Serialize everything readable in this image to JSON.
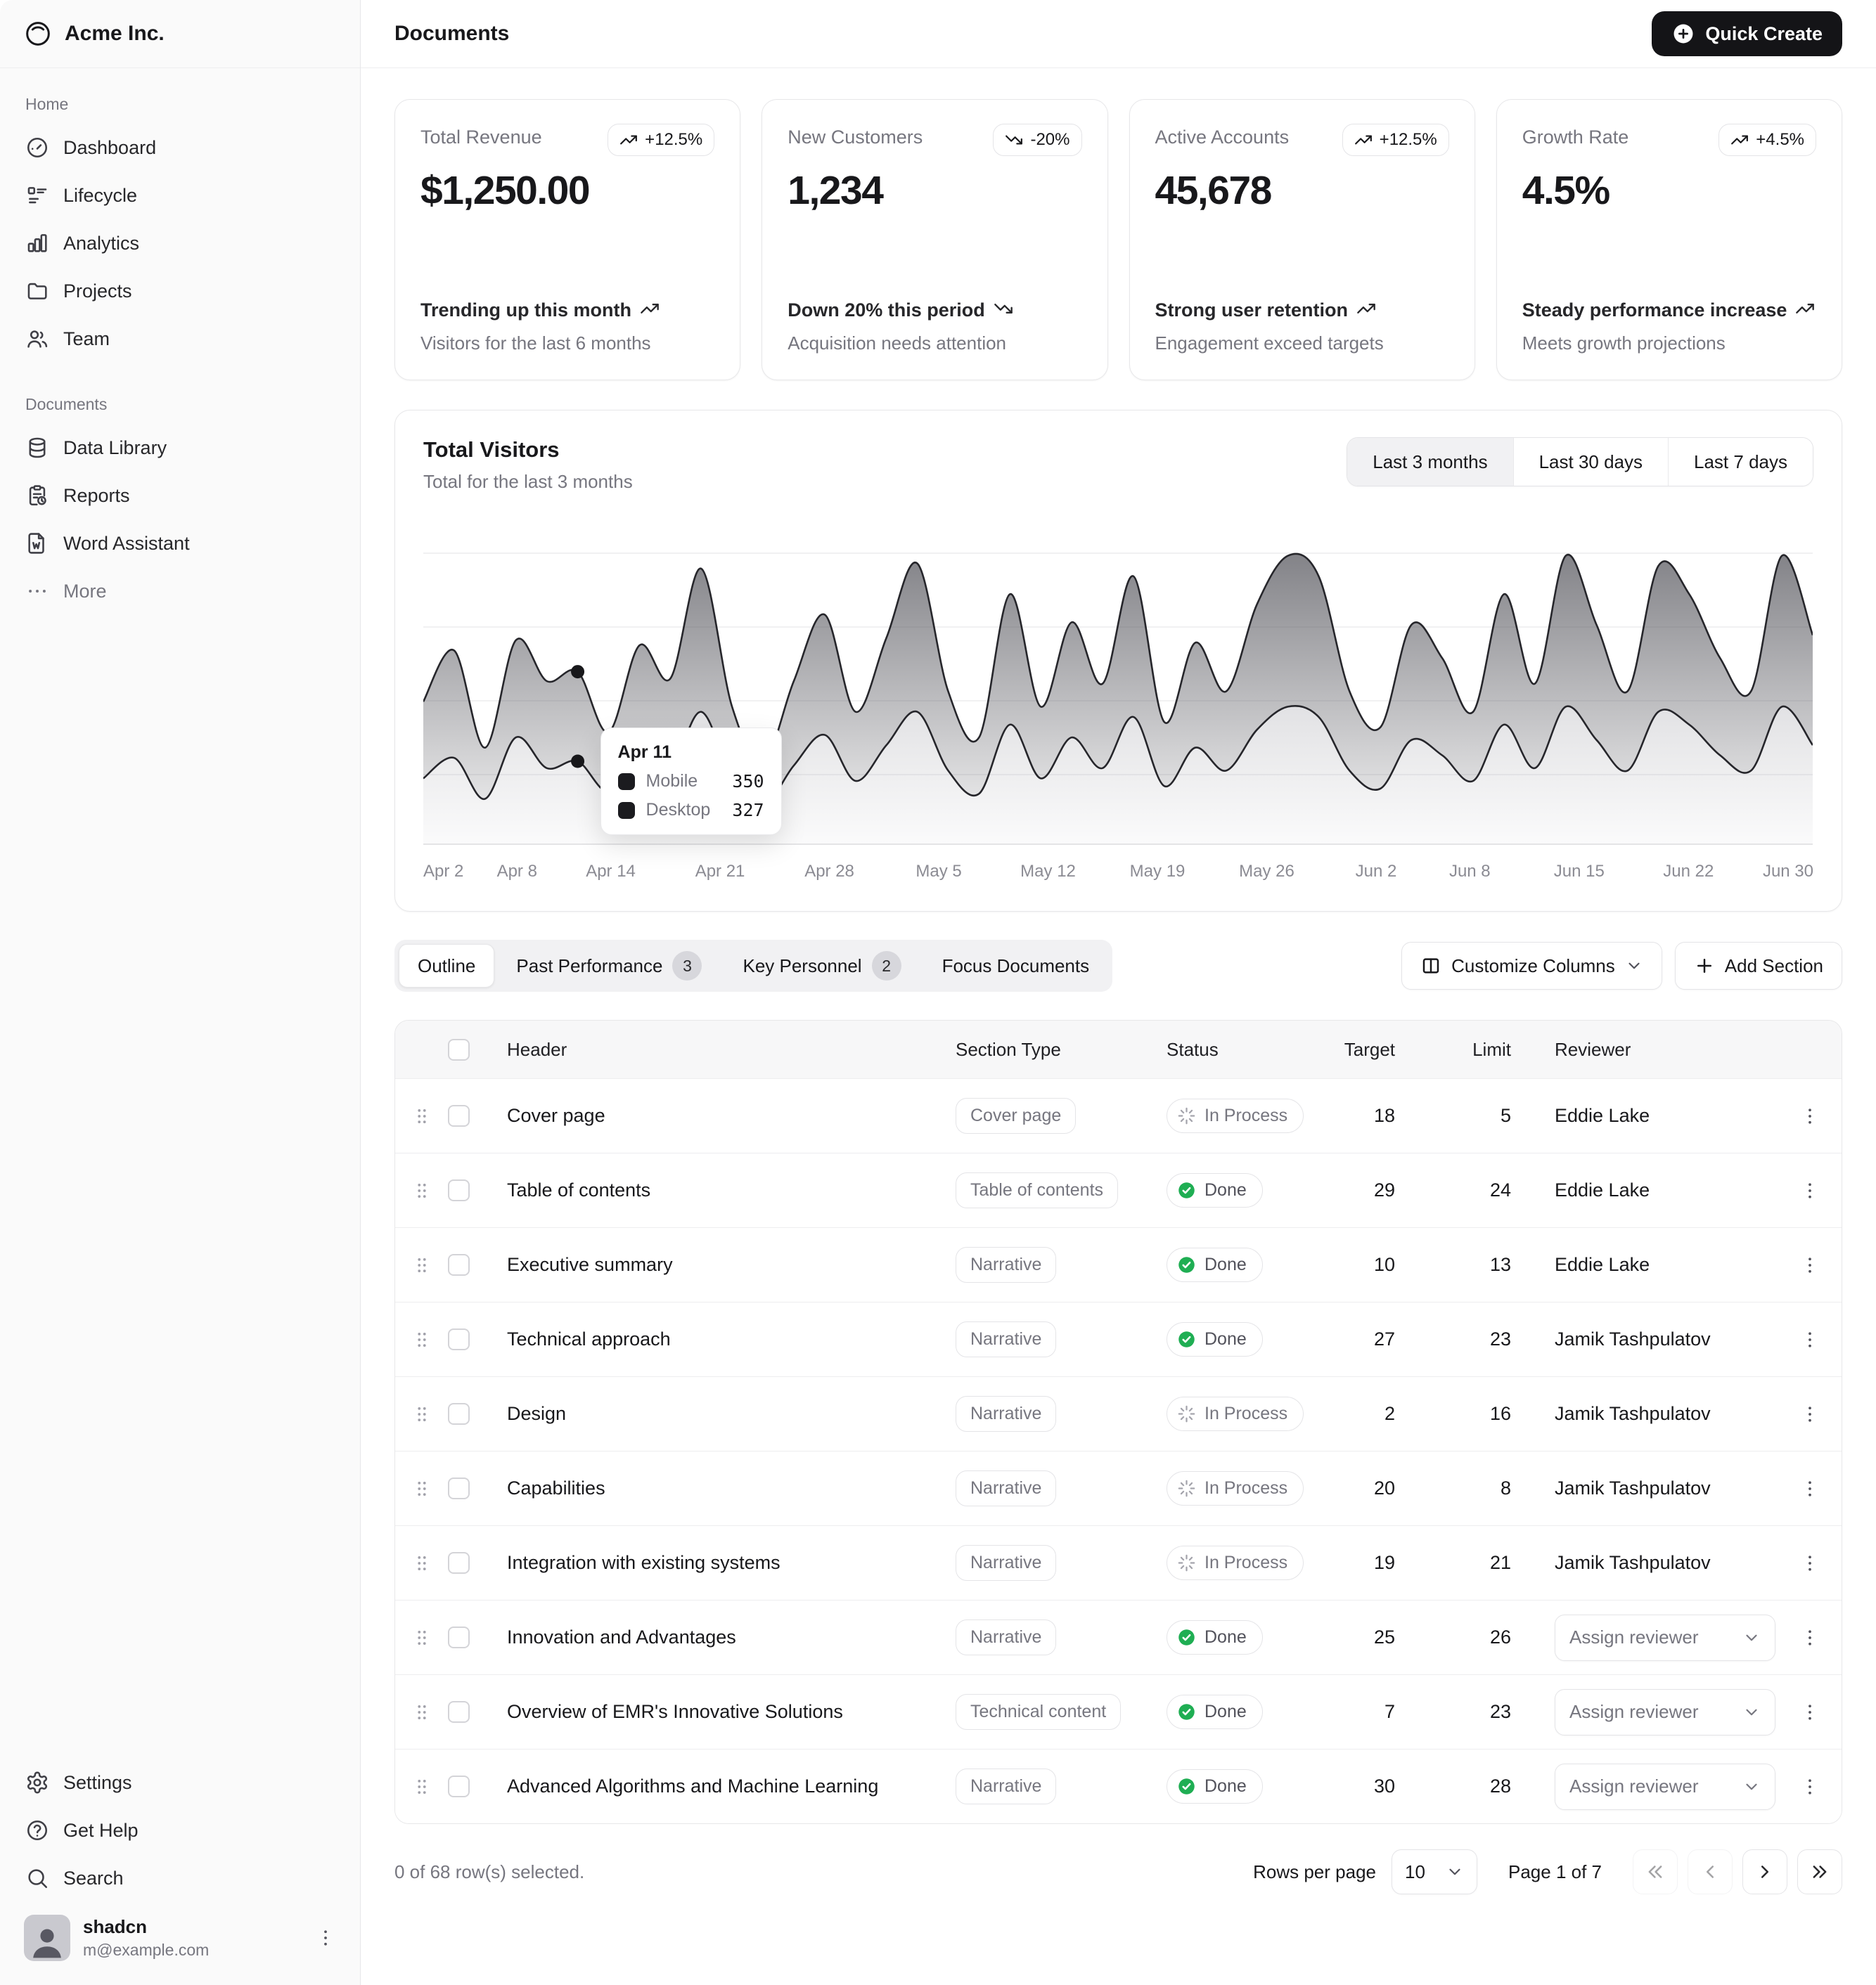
{
  "sidebar": {
    "brand": "Acme Inc.",
    "groups": [
      {
        "label": "Home",
        "items": [
          {
            "label": "Dashboard",
            "icon": "dashboard"
          },
          {
            "label": "Lifecycle",
            "icon": "lifecycle"
          },
          {
            "label": "Analytics",
            "icon": "analytics"
          },
          {
            "label": "Projects",
            "icon": "folder"
          },
          {
            "label": "Team",
            "icon": "users"
          }
        ]
      },
      {
        "label": "Documents",
        "items": [
          {
            "label": "Data Library",
            "icon": "database"
          },
          {
            "label": "Reports",
            "icon": "report"
          },
          {
            "label": "Word Assistant",
            "icon": "word"
          },
          {
            "label": "More",
            "icon": "dots",
            "muted": true
          }
        ]
      }
    ],
    "footer_items": [
      {
        "label": "Settings",
        "icon": "settings"
      },
      {
        "label": "Get Help",
        "icon": "help"
      },
      {
        "label": "Search",
        "icon": "search"
      }
    ],
    "user": {
      "name": "shadcn",
      "email": "m@example.com"
    }
  },
  "header": {
    "title": "Documents",
    "quick_create_label": "Quick Create"
  },
  "stat_cards": [
    {
      "label": "Total Revenue",
      "value": "$1,250.00",
      "badge": "+12.5%",
      "trend": "up",
      "line1": "Trending up this month",
      "line2": "Visitors for the last 6 months"
    },
    {
      "label": "New Customers",
      "value": "1,234",
      "badge": "-20%",
      "trend": "down",
      "line1": "Down 20% this period",
      "line2": "Acquisition needs attention"
    },
    {
      "label": "Active Accounts",
      "value": "45,678",
      "badge": "+12.5%",
      "trend": "up",
      "line1": "Strong user retention",
      "line2": "Engagement exceed targets"
    },
    {
      "label": "Growth Rate",
      "value": "4.5%",
      "badge": "+4.5%",
      "trend": "up",
      "line1": "Steady performance increase",
      "line2": "Meets growth projections"
    }
  ],
  "visitors_card": {
    "title": "Total Visitors",
    "subtitle": "Total for the last 3 months",
    "ranges": [
      "Last 3 months",
      "Last 30 days",
      "Last 7 days"
    ],
    "active_range": "Last 3 months"
  },
  "chart_data": {
    "type": "area",
    "stacked": true,
    "title": "Total Visitors",
    "x_ticks": [
      "Apr 2",
      "Apr 8",
      "Apr 14",
      "Apr 21",
      "Apr 28",
      "May 5",
      "May 12",
      "May 19",
      "May 26",
      "Jun 2",
      "Jun 8",
      "Jun 15",
      "Jun 22",
      "Jun 30"
    ],
    "series": [
      {
        "name": "Desktop",
        "values": [
          260,
          340,
          180,
          420,
          300,
          327,
          210,
          380,
          300,
          520,
          260,
          150,
          310,
          430,
          250,
          390,
          520,
          290,
          200,
          470,
          260,
          420,
          300,
          500,
          230,
          380,
          290,
          450,
          540,
          500,
          290,
          220,
          410,
          350,
          250,
          470,
          300,
          540,
          410,
          290,
          520,
          470,
          350,
          290,
          540,
          390
        ]
      },
      {
        "name": "Mobile",
        "values": [
          300,
          420,
          200,
          380,
          340,
          350,
          230,
          400,
          350,
          560,
          280,
          170,
          330,
          470,
          270,
          420,
          580,
          310,
          220,
          510,
          280,
          450,
          330,
          550,
          250,
          410,
          310,
          490,
          590,
          550,
          310,
          240,
          450,
          380,
          270,
          510,
          330,
          590,
          450,
          310,
          570,
          510,
          380,
          310,
          590,
          430
        ]
      }
    ],
    "ylim": [
      0,
      1250
    ],
    "grid": "horizontal",
    "legend": "none",
    "tooltip": {
      "index": 5,
      "date": "Apr 11",
      "items": [
        {
          "label": "Mobile",
          "value": 350
        },
        {
          "label": "Desktop",
          "value": 327
        }
      ]
    }
  },
  "table_tabs": [
    {
      "label": "Outline",
      "active": true
    },
    {
      "label": "Past Performance",
      "badge": "3"
    },
    {
      "label": "Key Personnel",
      "badge": "2"
    },
    {
      "label": "Focus Documents"
    }
  ],
  "toolbar": {
    "customize_label": "Customize Columns",
    "add_section_label": "Add Section"
  },
  "table": {
    "columns": [
      "Header",
      "Section Type",
      "Status",
      "Target",
      "Limit",
      "Reviewer"
    ],
    "assign_label": "Assign reviewer",
    "rows": [
      {
        "header": "Cover page",
        "section_type": "Cover page",
        "status": "In Process",
        "target": "18",
        "limit": "5",
        "reviewer": "Eddie Lake"
      },
      {
        "header": "Table of contents",
        "section_type": "Table of contents",
        "status": "Done",
        "target": "29",
        "limit": "24",
        "reviewer": "Eddie Lake"
      },
      {
        "header": "Executive summary",
        "section_type": "Narrative",
        "status": "Done",
        "target": "10",
        "limit": "13",
        "reviewer": "Eddie Lake"
      },
      {
        "header": "Technical approach",
        "section_type": "Narrative",
        "status": "Done",
        "target": "27",
        "limit": "23",
        "reviewer": "Jamik Tashpulatov"
      },
      {
        "header": "Design",
        "section_type": "Narrative",
        "status": "In Process",
        "target": "2",
        "limit": "16",
        "reviewer": "Jamik Tashpulatov"
      },
      {
        "header": "Capabilities",
        "section_type": "Narrative",
        "status": "In Process",
        "target": "20",
        "limit": "8",
        "reviewer": "Jamik Tashpulatov"
      },
      {
        "header": "Integration with existing systems",
        "section_type": "Narrative",
        "status": "In Process",
        "target": "19",
        "limit": "21",
        "reviewer": "Jamik Tashpulatov"
      },
      {
        "header": "Innovation and Advantages",
        "section_type": "Narrative",
        "status": "Done",
        "target": "25",
        "limit": "26",
        "reviewer": null
      },
      {
        "header": "Overview of EMR's Innovative Solutions",
        "section_type": "Technical content",
        "status": "Done",
        "target": "7",
        "limit": "23",
        "reviewer": null
      },
      {
        "header": "Advanced Algorithms and Machine Learning",
        "section_type": "Narrative",
        "status": "Done",
        "target": "30",
        "limit": "28",
        "reviewer": null
      }
    ]
  },
  "pagination": {
    "selected_text": "0 of 68 row(s) selected.",
    "rows_per_page_label": "Rows per page",
    "rows_per_page_value": "10",
    "page_text": "Page 1 of 7"
  }
}
